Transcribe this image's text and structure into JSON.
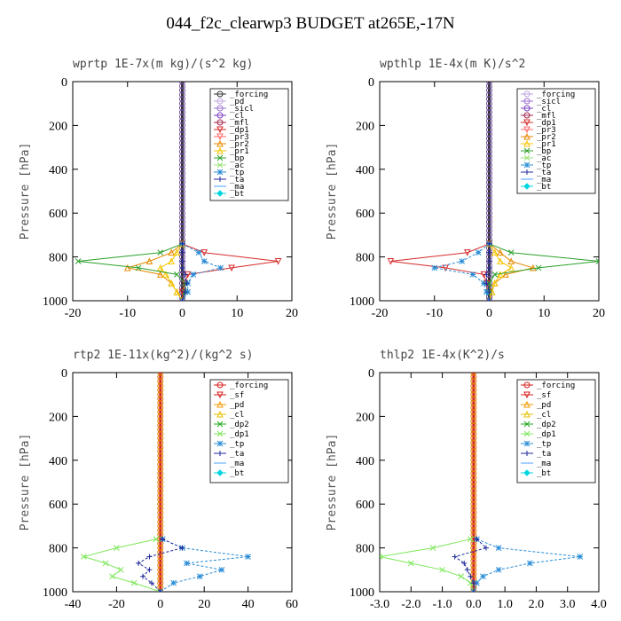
{
  "figure": {
    "title": "044_f2c_clearwp3  BUDGET at265E,-17N"
  },
  "colors": {
    "forcing": "#333333",
    "pd": "#bfa6e0",
    "sicl": "#9a6fd0",
    "cl_purple": "#7a3fbf",
    "mfl": "#a0244a",
    "dp1": "#d62a2a",
    "pr3": "#ff6a6a",
    "pr2": "#e68a00",
    "pr1": "#f5c500",
    "bp": "#2ca02c",
    "ac": "#9be27a",
    "tp": "#2a8cd6",
    "ta": "#1f2a9a",
    "ma": "#4aa3ff",
    "bt": "#00d6e0",
    "sf": "#d61e1e",
    "pd2": "#f29b00",
    "cl_yellow": "#e6c200",
    "dp2": "#22aa22",
    "dp1_light": "#7de85a"
  },
  "chart_data": [
    {
      "type": "line",
      "title": "wprtp  1E-7x(m kg)/(s^2 kg)",
      "ylabel": "Pressure [hPa]",
      "xlim": [
        -20,
        20
      ],
      "ylim": [
        1000,
        0
      ],
      "xticks": [
        "-20",
        "-10",
        "0",
        "10",
        "20"
      ],
      "yticks": [
        "0",
        "200",
        "400",
        "600",
        "800",
        "1000"
      ],
      "grid": false,
      "legend_position": "top-right",
      "pressure": [
        740,
        780,
        820,
        850,
        880,
        920,
        960,
        1000
      ],
      "series": [
        {
          "name": "_forcing",
          "color": "#333333",
          "marker": "o",
          "values": [
            0,
            0,
            0,
            0,
            0,
            0,
            0,
            0
          ]
        },
        {
          "name": "_pd",
          "color": "#bfa6e0",
          "marker": "o",
          "values": [
            0,
            0,
            0,
            0,
            0,
            0,
            0,
            0
          ]
        },
        {
          "name": "_sicl",
          "color": "#9a6fd0",
          "marker": "o",
          "values": [
            0,
            0,
            0,
            0,
            0,
            0,
            0,
            0
          ]
        },
        {
          "name": "_cl",
          "color": "#7a3fbf",
          "marker": "o",
          "values": [
            0,
            0,
            0,
            0,
            0,
            0,
            0,
            0
          ]
        },
        {
          "name": "_mfl",
          "color": "#a0244a",
          "marker": "o",
          "values": [
            0,
            0,
            0,
            0,
            0,
            0,
            0,
            0
          ]
        },
        {
          "name": "_dp1",
          "color": "#d62a2a",
          "marker": "v",
          "values": [
            0,
            4,
            17.5,
            9,
            1,
            0.5,
            0,
            0
          ]
        },
        {
          "name": "_pr3",
          "color": "#ff6a6a",
          "marker": "v",
          "values": [
            0,
            0,
            0,
            0,
            0,
            0,
            0,
            0
          ]
        },
        {
          "name": "_pr2",
          "color": "#e68a00",
          "marker": "^",
          "values": [
            0,
            -2,
            -6,
            -10,
            -4,
            -2,
            -1,
            0
          ]
        },
        {
          "name": "_pr1",
          "color": "#f5c500",
          "marker": "^",
          "values": [
            0,
            -1,
            -2,
            -4,
            -3,
            -2,
            -1,
            0
          ]
        },
        {
          "name": "_bp",
          "color": "#2ca02c",
          "marker": "x",
          "values": [
            0,
            -4,
            -19,
            -8,
            -1,
            0.5,
            0.5,
            0
          ]
        },
        {
          "name": "_ac",
          "color": "#9be27a",
          "marker": "x",
          "values": [
            0,
            0,
            0,
            0,
            0,
            0,
            0,
            0
          ]
        },
        {
          "name": "_tp",
          "color": "#2a8cd6",
          "marker": "*",
          "values": [
            0,
            3,
            4,
            7,
            2,
            1,
            1,
            0
          ]
        },
        {
          "name": "_ta",
          "color": "#1f2a9a",
          "marker": "+",
          "values": [
            0,
            0,
            0,
            0,
            0.5,
            0.8,
            0.5,
            0
          ]
        },
        {
          "name": "_ma",
          "color": "#4aa3ff",
          "marker": "-",
          "values": [
            0,
            0,
            0,
            0,
            0,
            0,
            0,
            0
          ]
        },
        {
          "name": "_bt",
          "color": "#00d6e0",
          "marker": "d",
          "values": [
            0,
            0,
            0,
            0,
            0,
            0,
            0,
            0
          ]
        }
      ]
    },
    {
      "type": "line",
      "title": "wpthlp  1E-4x(m K)/s^2",
      "ylabel": "Pressure [hPa]",
      "xlim": [
        -20,
        20
      ],
      "ylim": [
        1000,
        0
      ],
      "xticks": [
        "-20",
        "-10",
        "0",
        "10",
        "20"
      ],
      "yticks": [
        "0",
        "200",
        "400",
        "600",
        "800",
        "1000"
      ],
      "grid": false,
      "legend_position": "top-right",
      "pressure": [
        740,
        780,
        820,
        850,
        880,
        920,
        960,
        1000
      ],
      "series": [
        {
          "name": "_forcing",
          "color": "#bfa6e0",
          "marker": "o",
          "values": [
            0,
            0,
            0,
            0,
            0,
            0,
            0,
            0
          ]
        },
        {
          "name": "_sicl",
          "color": "#9a6fd0",
          "marker": "o",
          "values": [
            0,
            0,
            0,
            0,
            0,
            0,
            0,
            0
          ]
        },
        {
          "name": "_cl",
          "color": "#7a3fbf",
          "marker": "o",
          "values": [
            0,
            0,
            0,
            0,
            0,
            0,
            0,
            0
          ]
        },
        {
          "name": "_mfl",
          "color": "#a0244a",
          "marker": "o",
          "values": [
            0,
            0,
            0,
            0,
            0,
            0,
            0,
            0
          ]
        },
        {
          "name": "_dp1",
          "color": "#d62a2a",
          "marker": "v",
          "values": [
            0,
            -4,
            -18,
            -8,
            -1,
            -0.5,
            0,
            0
          ]
        },
        {
          "name": "_pr3",
          "color": "#ff6a6a",
          "marker": "v",
          "values": [
            0,
            0,
            0,
            0,
            0,
            0,
            0,
            0
          ]
        },
        {
          "name": "_pr2",
          "color": "#e68a00",
          "marker": "^",
          "values": [
            0,
            2,
            4,
            8,
            3,
            1,
            0.5,
            0
          ]
        },
        {
          "name": "_pr1",
          "color": "#f5c500",
          "marker": "^",
          "values": [
            0,
            1,
            2,
            4,
            2,
            1,
            0.5,
            0
          ]
        },
        {
          "name": "_bp",
          "color": "#2ca02c",
          "marker": "x",
          "values": [
            0,
            4,
            20,
            9,
            1,
            0,
            0,
            0
          ]
        },
        {
          "name": "_ac",
          "color": "#9be27a",
          "marker": "x",
          "values": [
            0,
            0,
            0,
            0,
            0,
            0,
            0,
            0
          ]
        },
        {
          "name": "_tp",
          "color": "#2a8cd6",
          "marker": "*",
          "values": [
            0,
            -2,
            -5,
            -10,
            -3,
            -1,
            -0.5,
            0
          ]
        },
        {
          "name": "_ta",
          "color": "#1f2a9a",
          "marker": "+",
          "values": [
            0,
            0,
            0,
            0,
            -0.5,
            -0.5,
            0,
            0
          ]
        },
        {
          "name": "_ma",
          "color": "#4aa3ff",
          "marker": "-",
          "values": [
            0,
            0,
            0,
            0,
            0,
            0,
            0,
            0
          ]
        },
        {
          "name": "_bt",
          "color": "#00d6e0",
          "marker": "d",
          "values": [
            0,
            0,
            0,
            0,
            0,
            0,
            0,
            0
          ]
        }
      ]
    },
    {
      "type": "line",
      "title": "rtp2  1E-11x(kg^2)/(kg^2 s)",
      "ylabel": "Pressure [hPa]",
      "xlim": [
        -40,
        60
      ],
      "ylim": [
        1000,
        0
      ],
      "xticks": [
        "-40",
        "-20",
        "0",
        "20",
        "40",
        "60"
      ],
      "yticks": [
        "0",
        "200",
        "400",
        "600",
        "800",
        "1000"
      ],
      "grid": false,
      "legend_position": "top-right",
      "pressure": [
        760,
        800,
        840,
        870,
        900,
        930,
        960,
        1000
      ],
      "series": [
        {
          "name": "_forcing",
          "color": "#d61e1e",
          "marker": "o",
          "values": [
            0,
            0,
            0,
            0,
            0,
            0,
            0,
            0
          ]
        },
        {
          "name": "_sf",
          "color": "#d61e1e",
          "marker": "v",
          "values": [
            0,
            0,
            0,
            0,
            0,
            0,
            0,
            0
          ]
        },
        {
          "name": "_pd",
          "color": "#f29b00",
          "marker": "^",
          "values": [
            0,
            0,
            0,
            0,
            0,
            0,
            0,
            0
          ]
        },
        {
          "name": "_cl",
          "color": "#e6c200",
          "marker": "^",
          "values": [
            0,
            0,
            0,
            0,
            0,
            0,
            0,
            0
          ]
        },
        {
          "name": "_dp2",
          "color": "#22aa22",
          "marker": "x",
          "values": [
            0,
            0,
            0,
            0,
            0,
            0,
            0,
            0
          ]
        },
        {
          "name": "_dp1",
          "color": "#7de85a",
          "marker": "x",
          "values": [
            -2,
            -20,
            -35,
            -25,
            -18,
            -22,
            -12,
            0
          ]
        },
        {
          "name": "_tp",
          "color": "#2a8cd6",
          "marker": "*",
          "values": [
            1,
            10,
            40,
            12,
            28,
            18,
            6,
            0
          ]
        },
        {
          "name": "_ta",
          "color": "#1f2a9a",
          "marker": "+",
          "values": [
            1,
            10,
            -5,
            -10,
            -5,
            -8,
            -4,
            0
          ]
        },
        {
          "name": "_ma",
          "color": "#4aa3ff",
          "marker": "-",
          "values": [
            0,
            0,
            0,
            0,
            0,
            0,
            0,
            0
          ]
        },
        {
          "name": "_bt",
          "color": "#00d6e0",
          "marker": "d",
          "values": [
            0,
            0,
            0,
            0,
            0,
            0,
            0,
            0
          ]
        }
      ]
    },
    {
      "type": "line",
      "title": "thlp2  1E-4x(K^2)/s",
      "ylabel": "Pressure [hPa]",
      "xlim": [
        -3.0,
        4.0
      ],
      "ylim": [
        1000,
        0
      ],
      "xticks": [
        "-3.0",
        "-2.0",
        "-1.0",
        "0.0",
        "1.0",
        "2.0",
        "3.0",
        "4.0"
      ],
      "yticks": [
        "0",
        "200",
        "400",
        "600",
        "800",
        "1000"
      ],
      "grid": false,
      "legend_position": "top-right",
      "pressure": [
        760,
        800,
        840,
        870,
        900,
        930,
        960,
        1000
      ],
      "series": [
        {
          "name": "_forcing",
          "color": "#d61e1e",
          "marker": "o",
          "values": [
            0,
            0,
            0,
            0,
            0,
            0,
            0,
            0
          ]
        },
        {
          "name": "_sf",
          "color": "#d61e1e",
          "marker": "v",
          "values": [
            0,
            0,
            0,
            0,
            0,
            0,
            0,
            0
          ]
        },
        {
          "name": "_pd",
          "color": "#f29b00",
          "marker": "^",
          "values": [
            0,
            0,
            0,
            0,
            0,
            0,
            0,
            0
          ]
        },
        {
          "name": "_cl",
          "color": "#e6c200",
          "marker": "^",
          "values": [
            0,
            0,
            0,
            0,
            0,
            0,
            0,
            0
          ]
        },
        {
          "name": "_dp2",
          "color": "#22aa22",
          "marker": "x",
          "values": [
            0,
            0,
            0,
            0,
            0,
            0,
            0,
            0
          ]
        },
        {
          "name": "_dp1",
          "color": "#7de85a",
          "marker": "x",
          "values": [
            -0.1,
            -1.3,
            -3.0,
            -2.0,
            -1.0,
            -0.4,
            -0.1,
            0
          ]
        },
        {
          "name": "_tp",
          "color": "#2a8cd6",
          "marker": "*",
          "values": [
            0.1,
            0.8,
            3.4,
            1.8,
            0.8,
            0.3,
            0.1,
            0
          ]
        },
        {
          "name": "_ta",
          "color": "#1f2a9a",
          "marker": "+",
          "values": [
            0.1,
            0.4,
            -0.6,
            -0.3,
            -0.2,
            -0.1,
            0,
            0
          ]
        },
        {
          "name": "_ma",
          "color": "#4aa3ff",
          "marker": "-",
          "values": [
            0,
            0,
            0,
            0,
            0,
            0,
            0,
            0
          ]
        },
        {
          "name": "_bt",
          "color": "#00d6e0",
          "marker": "d",
          "values": [
            0,
            0,
            0,
            0,
            0,
            0,
            0,
            0
          ]
        }
      ]
    }
  ]
}
